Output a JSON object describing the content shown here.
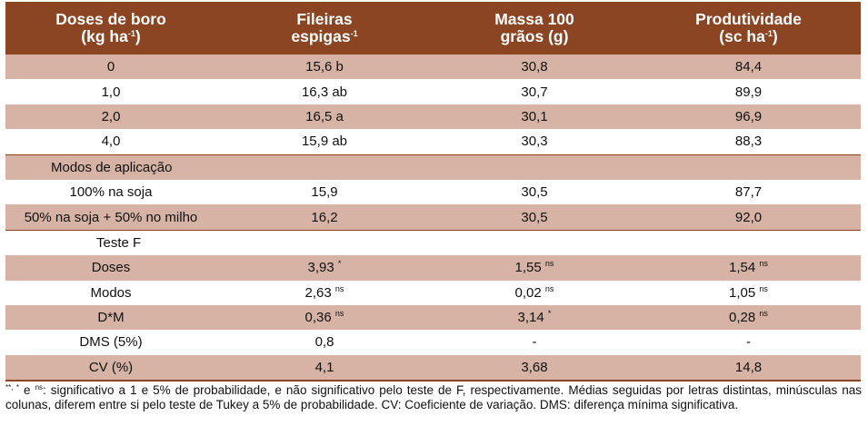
{
  "header": {
    "col1_line1": "Doses de boro",
    "col1_line2": "(kg ha",
    "col1_sup": "-1",
    "col1_close": ")",
    "col2_line1": "Fileiras",
    "col2_line2": "espigas",
    "col2_sup": "-1",
    "col3_line1": "Massa 100",
    "col3_line2": "grãos (g)",
    "col4_line1": "Produtividade",
    "col4_line2": "(sc ha",
    "col4_sup": "-1",
    "col4_close": ")"
  },
  "rows": [
    {
      "label": "0",
      "c2": "15,6 b",
      "c2s": "",
      "c3": "30,8",
      "c3s": "",
      "c4": "84,4",
      "c4s": ""
    },
    {
      "label": "1,0",
      "c2": "16,3 ab",
      "c2s": "",
      "c3": "30,7",
      "c3s": "",
      "c4": "89,9",
      "c4s": ""
    },
    {
      "label": "2,0",
      "c2": "16,5 a",
      "c2s": "",
      "c3": "30,1",
      "c3s": "",
      "c4": "96,9",
      "c4s": ""
    },
    {
      "label": "4,0",
      "c2": "15,9 ab",
      "c2s": "",
      "c3": "30,3",
      "c3s": "",
      "c4": "88,3",
      "c4s": ""
    },
    {
      "label": "Modos de aplicação",
      "c2": "",
      "c2s": "",
      "c3": "",
      "c3s": "",
      "c4": "",
      "c4s": ""
    },
    {
      "label": "100% na soja",
      "c2": "15,9",
      "c2s": "",
      "c3": "30,5",
      "c3s": "",
      "c4": "87,7",
      "c4s": ""
    },
    {
      "label": "50% na soja + 50% no milho",
      "c2": "16,2",
      "c2s": "",
      "c3": "30,5",
      "c3s": "",
      "c4": "92,0",
      "c4s": ""
    },
    {
      "label": "Teste F",
      "c2": "",
      "c2s": "",
      "c3": "",
      "c3s": "",
      "c4": "",
      "c4s": ""
    },
    {
      "label": "Doses",
      "c2": "3,93",
      "c2s": "*",
      "c3": "1,55",
      "c3s": "ns",
      "c4": "1,54",
      "c4s": "ns"
    },
    {
      "label": "Modos",
      "c2": "2,63",
      "c2s": "ns",
      "c3": "0,02",
      "c3s": "ns",
      "c4": "1,05",
      "c4s": "ns"
    },
    {
      "label": "D*M",
      "c2": "0,36",
      "c2s": "ns",
      "c3": "3,14",
      "c3s": "*",
      "c4": "0,28",
      "c4s": "ns"
    },
    {
      "label": "DMS (5%)",
      "c2": "0,8",
      "c2s": "",
      "c3": "-",
      "c3s": "",
      "c4": "-",
      "c4s": ""
    },
    {
      "label": "CV (%)",
      "c2": "4,1",
      "c2s": "",
      "c3": "3,68",
      "c3s": "",
      "c4": "14,8",
      "c4s": ""
    }
  ],
  "footnote": {
    "sup1": "**, *",
    "mid": " e ",
    "sup2": "ns",
    "text": ": significativo a 1 e 5% de probabilidade, e não significativo pelo teste de F, respectivamente. Médias seguidas por letras distintas, minúsculas nas colunas, diferem entre si pelo teste de Tukey a 5% de probabilidade. CV: Coeficiente de variação. DMS: diferença mínima significativa."
  },
  "colors": {
    "header_bg": "#8b4523",
    "shade_bg": "#d6b3a4"
  }
}
